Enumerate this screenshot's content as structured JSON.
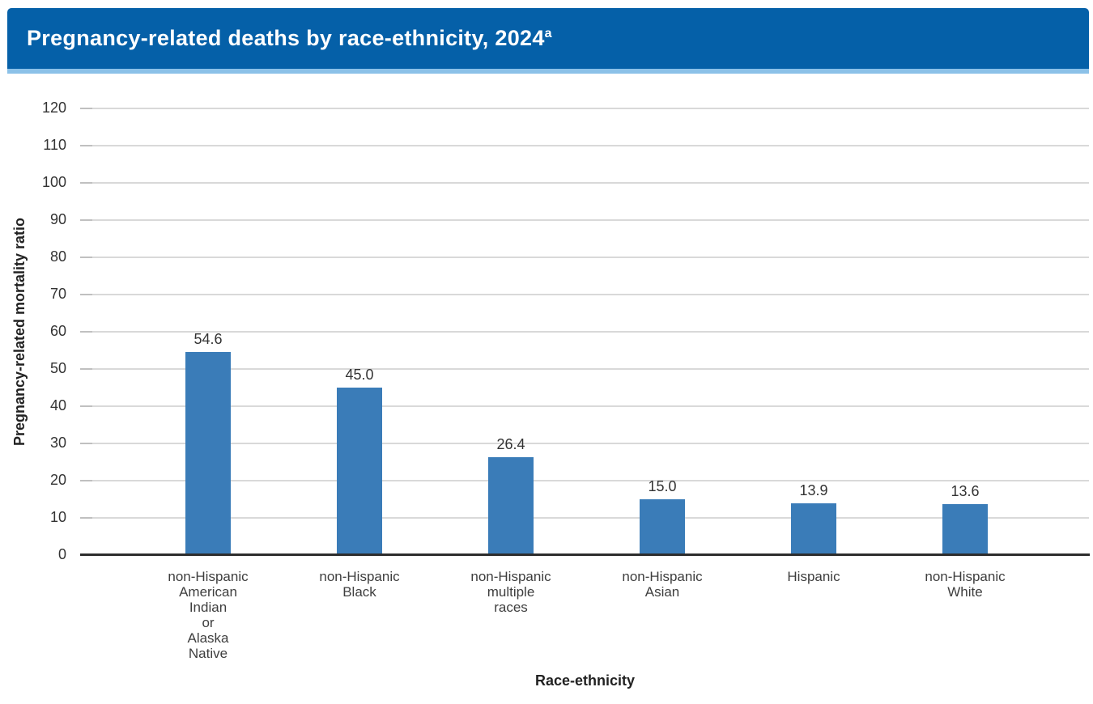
{
  "header": {
    "title": "Pregnancy-related deaths by race-ethnicity, 2024",
    "title_superscript": "a",
    "banner_color": "#0560a8",
    "accent_strip_color": "#8bc1e8"
  },
  "chart_data": {
    "type": "bar",
    "title": "Pregnancy-related deaths by race-ethnicity, 2024",
    "categories": [
      "non-Hispanic American Indian or Alaska Native",
      "non-Hispanic Black",
      "non-Hispanic multiple races",
      "non-Hispanic Asian",
      "Hispanic",
      "non-Hispanic White"
    ],
    "category_label_lines": [
      [
        "non-Hispanic",
        "American",
        "Indian",
        "or",
        "Alaska",
        "Native"
      ],
      [
        "non-Hispanic",
        "Black"
      ],
      [
        "non-Hispanic",
        "multiple",
        "races"
      ],
      [
        "non-Hispanic",
        "Asian"
      ],
      [
        "Hispanic"
      ],
      [
        "non-Hispanic",
        "White"
      ]
    ],
    "values": [
      54.6,
      45.0,
      26.4,
      15.0,
      13.9,
      13.6
    ],
    "value_labels": [
      "54.6",
      "45.0",
      "26.4",
      "15.0",
      "13.9",
      "13.6"
    ],
    "xlabel": "Race-ethnicity",
    "ylabel": "Pregnancy-related mortality ratio",
    "ylim": [
      0,
      120
    ],
    "y_ticks": [
      0,
      10,
      20,
      30,
      40,
      50,
      60,
      70,
      80,
      90,
      100,
      110,
      120
    ],
    "grid": "horizontal",
    "legend": "none",
    "bar_color": "#3a7cb8",
    "gridline_color": "#d9d9d9",
    "axis_line_color": "#2d2d2d"
  }
}
